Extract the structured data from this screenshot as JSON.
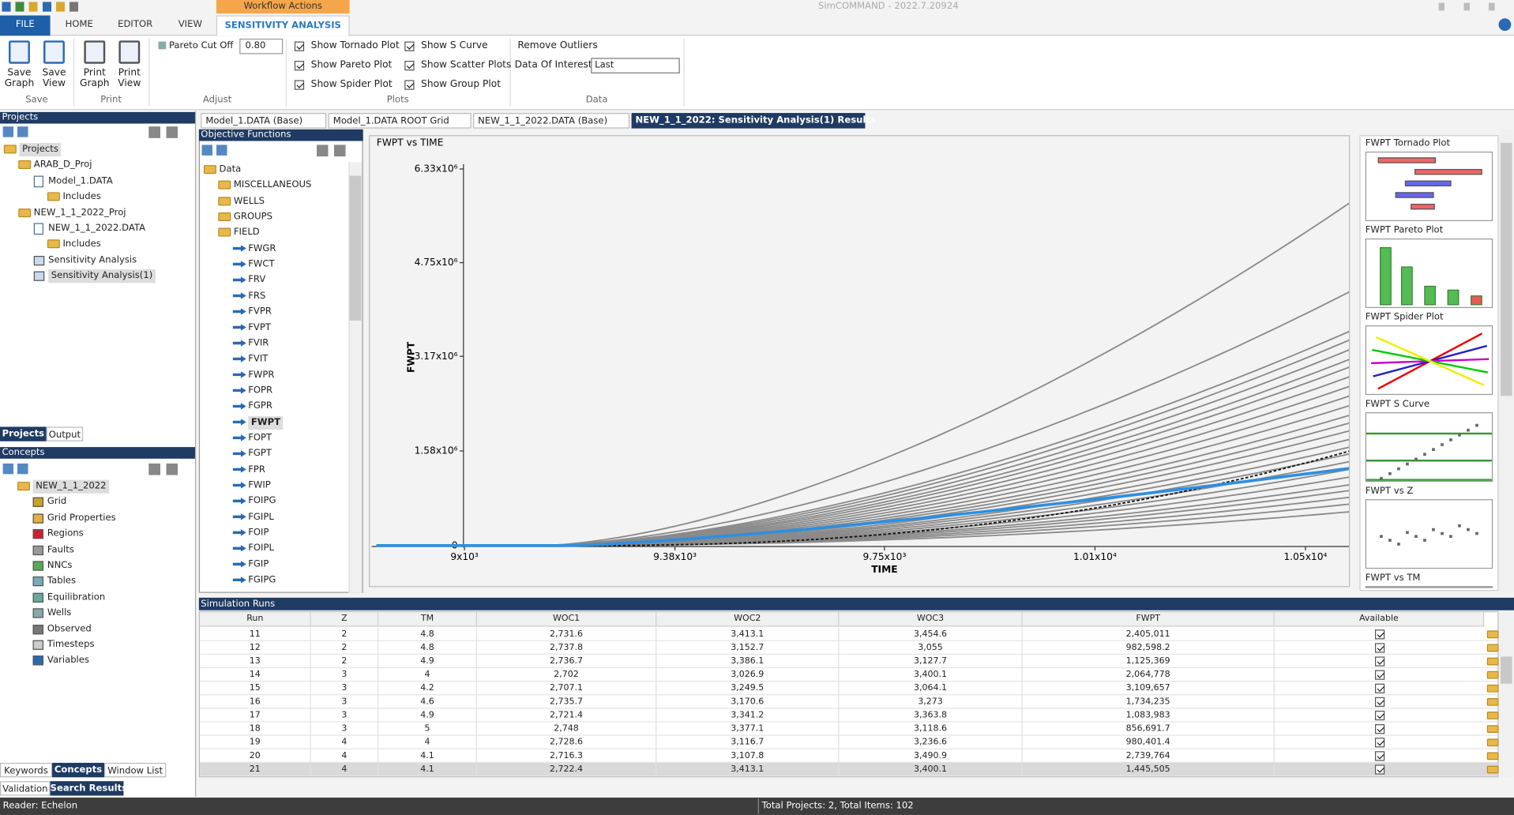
{
  "titlebar": {
    "title": "SimCOMMAND - 2022.7.20924",
    "context_tab": "Workflow Actions"
  },
  "ribbon": {
    "tabs": [
      "FILE",
      "HOME",
      "EDITOR",
      "VIEW",
      "SENSITIVITY ANALYSIS"
    ],
    "save": {
      "label": "Save",
      "buttons": [
        "Save Graph",
        "Save View"
      ]
    },
    "print": {
      "label": "Print",
      "buttons": [
        "Print Graph",
        "Print View"
      ]
    },
    "adjust": {
      "label": "Adjust",
      "pareto_label": "Pareto Cut Off",
      "pareto_value": "0.80"
    },
    "plots": {
      "label": "Plots",
      "options": [
        {
          "text": "Show Tornado Plot",
          "checked": true
        },
        {
          "text": "Show Pareto Plot",
          "checked": true
        },
        {
          "text": "Show Spider Plot",
          "checked": true
        },
        {
          "text": "Show S Curve",
          "checked": true
        },
        {
          "text": "Show Scatter Plots",
          "checked": true
        },
        {
          "text": "Show Group Plot",
          "checked": true
        }
      ]
    },
    "data": {
      "label": "Data",
      "remove_outliers": "Remove Outliers",
      "interest_label": "Data Of Interest",
      "interest_value": "Last"
    }
  },
  "projects": {
    "header": "Projects",
    "items": [
      "Projects",
      "ARAB_D_Proj",
      "Model_1.DATA",
      "Includes",
      "NEW_1_1_2022_Proj",
      "NEW_1_1_2022.DATA",
      "Includes",
      "Sensitivity Analysis",
      "Sensitivity Analysis(1)"
    ],
    "tabs": [
      "Projects",
      "Output"
    ]
  },
  "concepts": {
    "header": "Concepts",
    "items": [
      "NEW_1_1_2022",
      "Grid",
      "Grid Properties",
      "Regions",
      "Faults",
      "NNCs",
      "Tables",
      "Equilibration",
      "Wells",
      "Observed",
      "Timesteps",
      "Variables"
    ],
    "tabs": [
      "Keywords",
      "Concepts",
      "Window List"
    ]
  },
  "bottom_tabs": [
    "Validation",
    "Search Results"
  ],
  "documents": {
    "tabs": [
      "Model_1.DATA (Base)",
      "Model_1.DATA ROOT Grid",
      "NEW_1_1_2022.DATA (Base)",
      "NEW_1_1_2022: Sensitivity Analysis(1) Results"
    ]
  },
  "objective_functions": {
    "header": "Objective Functions",
    "items": [
      "Data",
      "MISCELLANEOUS",
      "WELLS",
      "GROUPS",
      "FIELD",
      "FWGR",
      "FWCT",
      "FRV",
      "FRS",
      "FVPR",
      "FVPT",
      "FVIR",
      "FVIT",
      "FWPR",
      "FOPR",
      "FGPR",
      "FWPT",
      "FOPT",
      "FGPT",
      "FPR",
      "FWIP",
      "FOIPG",
      "FGIPL",
      "FOIP",
      "FOIPL",
      "FGIP",
      "FGIPG"
    ]
  },
  "plot": {
    "title": "FWPT vs TIME",
    "y_label": "FWPT",
    "x_label": "TIME",
    "yticks": [
      "6.33x10⁶",
      "4.75x10⁶",
      "3.17x10⁶",
      "1.58x10⁶",
      "0"
    ],
    "xticks": [
      "9x10³",
      "9.38x10³",
      "9.75x10³",
      "1.01x10⁴",
      "1.05x10⁴"
    ]
  },
  "thumbnails": [
    "FWPT Tornado Plot",
    "FWPT Pareto Plot",
    "FWPT Spider Plot",
    "FWPT S Curve",
    "FWPT vs Z",
    "FWPT vs TM"
  ],
  "simulation_runs": {
    "header": "Simulation Runs",
    "columns": [
      "Run",
      "Z",
      "TM",
      "WOC1",
      "WOC2",
      "WOC3",
      "FWPT",
      "Available"
    ],
    "rows": [
      [
        "11",
        "2",
        "4.8",
        "2,731.6",
        "3,413.1",
        "3,454.6",
        "2,405,011"
      ],
      [
        "12",
        "2",
        "4.8",
        "2,737.8",
        "3,152.7",
        "3,055",
        "982,598.2"
      ],
      [
        "13",
        "2",
        "4.9",
        "2,736.7",
        "3,386.1",
        "3,127.7",
        "1,125,369"
      ],
      [
        "14",
        "3",
        "4",
        "2,702",
        "3,026.9",
        "3,400.1",
        "2,064,778"
      ],
      [
        "15",
        "3",
        "4.2",
        "2,707.1",
        "3,249.5",
        "3,064.1",
        "3,109,657"
      ],
      [
        "16",
        "3",
        "4.6",
        "2,735.7",
        "3,170.6",
        "3,273",
        "1,734,235"
      ],
      [
        "17",
        "3",
        "4.9",
        "2,721.4",
        "3,341.2",
        "3,363.8",
        "1,083,983"
      ],
      [
        "18",
        "3",
        "5",
        "2,748",
        "3,377.1",
        "3,118.6",
        "856,691.7"
      ],
      [
        "19",
        "4",
        "4",
        "2,728.6",
        "3,116.7",
        "3,236.6",
        "980,401.4"
      ],
      [
        "20",
        "4",
        "4.1",
        "2,716.3",
        "3,107.8",
        "3,490.9",
        "2,739,764"
      ],
      [
        "21",
        "4",
        "4.1",
        "2,722.4",
        "3,413.1",
        "3,400.1",
        "1,445,505"
      ]
    ]
  },
  "status": {
    "left": "Reader: Echelon",
    "right": "Total Projects: 2, Total Items: 102"
  }
}
